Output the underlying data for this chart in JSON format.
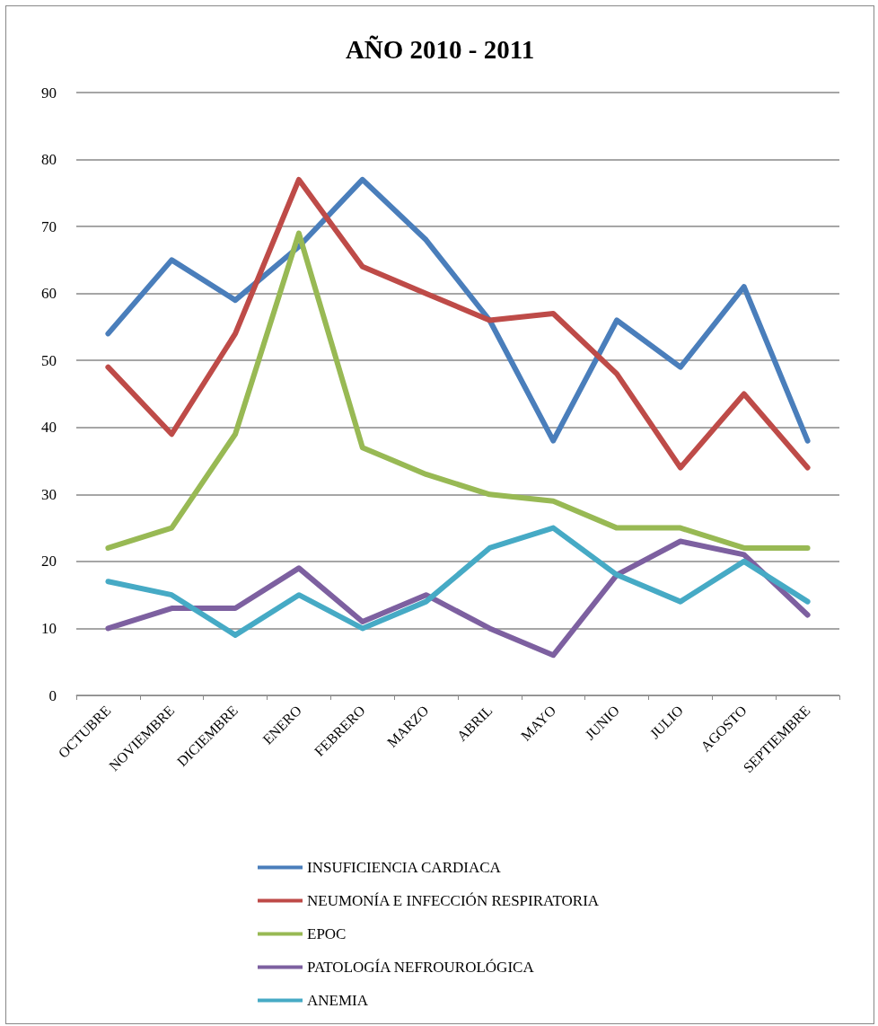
{
  "chart_data": {
    "type": "line",
    "title": "AÑO 2010 - 2011",
    "categories": [
      "OCTUBRE",
      "NOVIEMBRE",
      "DICIEMBRE",
      "ENERO",
      "FEBRERO",
      "MARZO",
      "ABRIL",
      "MAYO",
      "JUNIO",
      "JULIO",
      "AGOSTO",
      "SEPTIEMBRE"
    ],
    "series": [
      {
        "name": "INSUFICIENCIA CARDIACA",
        "color": "#4a7ebb",
        "values": [
          54,
          65,
          59,
          67,
          77,
          68,
          56,
          38,
          56,
          49,
          61,
          38
        ]
      },
      {
        "name": "NEUMONÍA E INFECCIÓN RESPIRATORIA",
        "color": "#be4b48",
        "values": [
          49,
          39,
          54,
          77,
          64,
          60,
          56,
          57,
          48,
          34,
          45,
          34
        ]
      },
      {
        "name": "EPOC",
        "color": "#98b954",
        "values": [
          22,
          25,
          39,
          69,
          37,
          33,
          30,
          29,
          25,
          25,
          22,
          22
        ]
      },
      {
        "name": "PATOLOGÍA NEFROUROLÓGICA",
        "color": "#7d60a0",
        "values": [
          10,
          13,
          13,
          19,
          11,
          15,
          10,
          6,
          18,
          23,
          21,
          12
        ]
      },
      {
        "name": "ANEMIA",
        "color": "#46aac5",
        "values": [
          17,
          15,
          9,
          15,
          10,
          14,
          22,
          25,
          18,
          14,
          20,
          14
        ]
      }
    ],
    "ylim": [
      0,
      90
    ],
    "yticks": [
      0,
      10,
      20,
      30,
      40,
      50,
      60,
      70,
      80,
      90
    ],
    "grid": "y",
    "legend": "bottom",
    "marker": "none",
    "line_style": "solid"
  }
}
